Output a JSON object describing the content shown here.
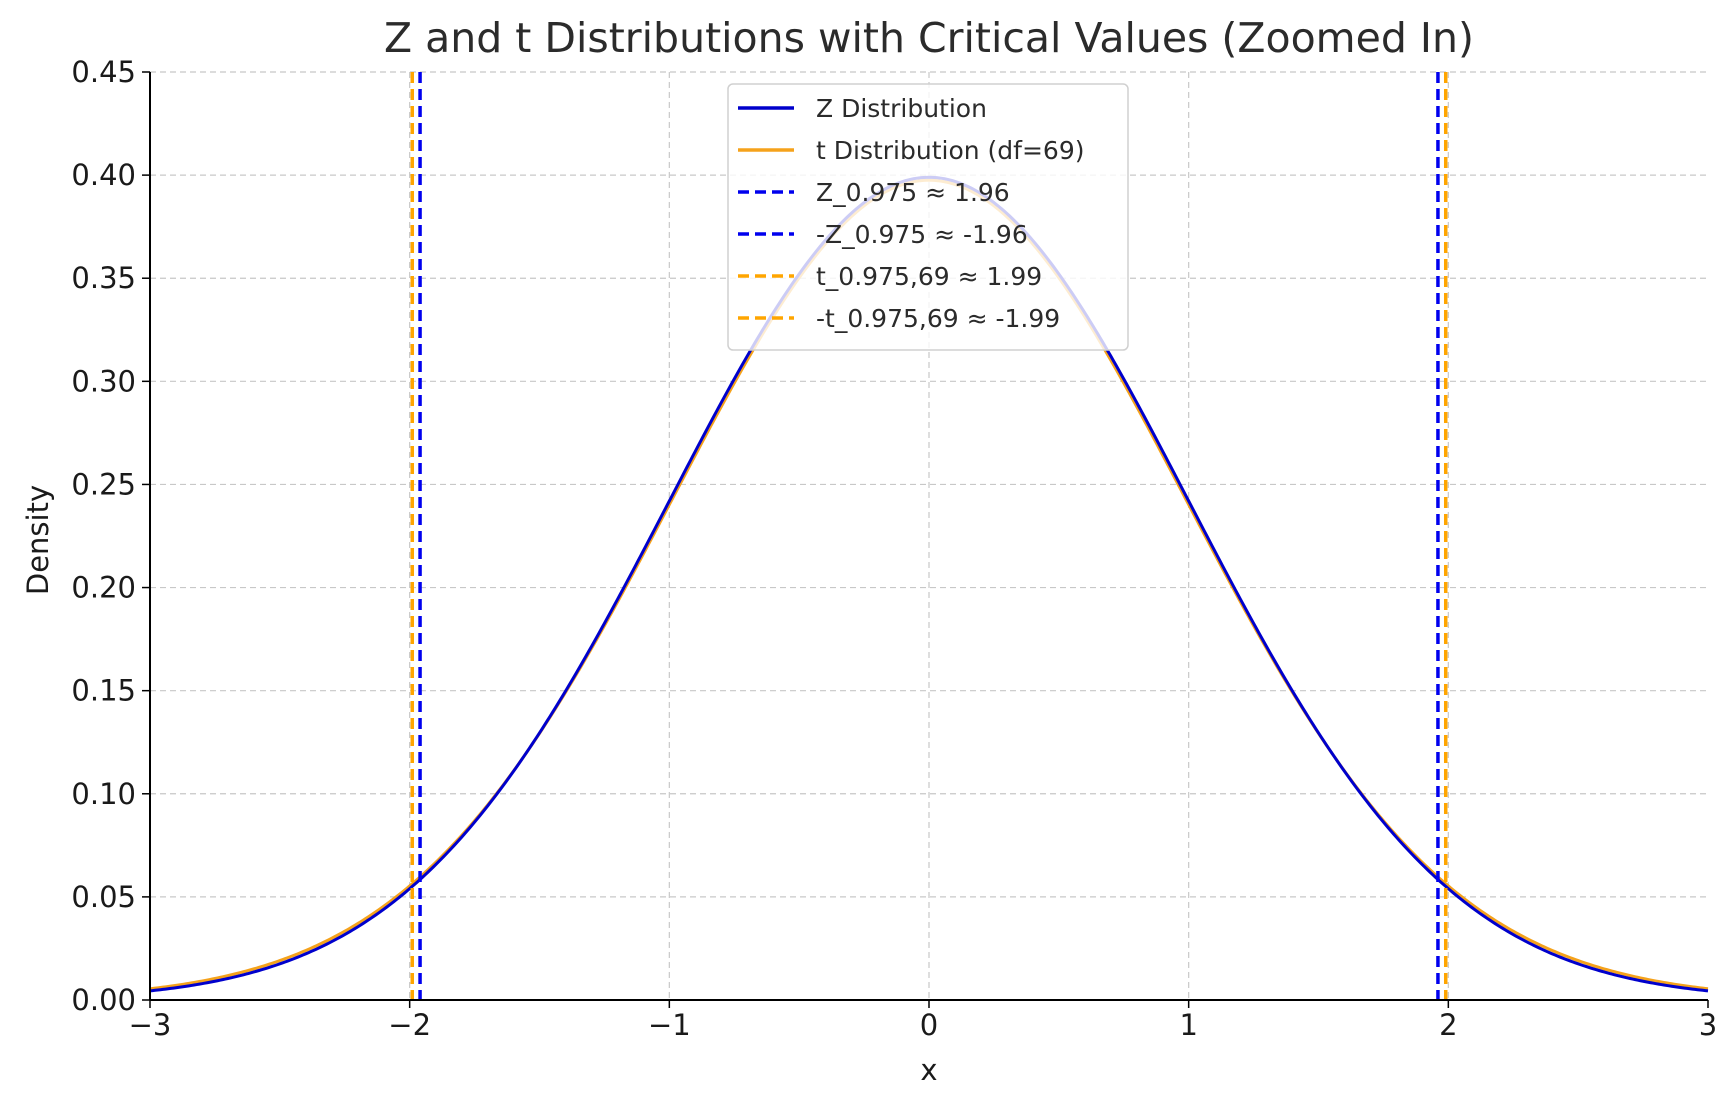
{
  "chart_data": {
    "type": "line",
    "title": "Z and t Distributions with Critical Values (Zoomed In)",
    "xlabel": "x",
    "ylabel": "Density",
    "xlim": [
      -3,
      3
    ],
    "ylim": [
      0,
      0.45
    ],
    "x_ticks": [
      {
        "value": -3,
        "label": "−3"
      },
      {
        "value": -2,
        "label": "−2"
      },
      {
        "value": -1,
        "label": "−1"
      },
      {
        "value": 0,
        "label": "0"
      },
      {
        "value": 1,
        "label": "1"
      },
      {
        "value": 2,
        "label": "2"
      },
      {
        "value": 3,
        "label": "3"
      }
    ],
    "y_ticks": [
      {
        "value": 0.0,
        "label": "0.00"
      },
      {
        "value": 0.05,
        "label": "0.05"
      },
      {
        "value": 0.1,
        "label": "0.10"
      },
      {
        "value": 0.15,
        "label": "0.15"
      },
      {
        "value": 0.2,
        "label": "0.20"
      },
      {
        "value": 0.25,
        "label": "0.25"
      },
      {
        "value": 0.3,
        "label": "0.30"
      },
      {
        "value": 0.35,
        "label": "0.35"
      },
      {
        "value": 0.4,
        "label": "0.40"
      },
      {
        "value": 0.45,
        "label": "0.45"
      }
    ],
    "grid": true,
    "legend_position": "top-center",
    "series": [
      {
        "name": "Z Distribution",
        "color": "#0000cc",
        "style": "solid",
        "x": [
          -3.0,
          -2.75,
          -2.5,
          -2.25,
          -2.0,
          -1.75,
          -1.5,
          -1.25,
          -1.0,
          -0.75,
          -0.5,
          -0.25,
          0.0,
          0.25,
          0.5,
          0.75,
          1.0,
          1.25,
          1.5,
          1.75,
          2.0,
          2.25,
          2.5,
          2.75,
          3.0
        ],
        "y": [
          0.0044,
          0.0091,
          0.0175,
          0.0317,
          0.054,
          0.0863,
          0.1295,
          0.1826,
          0.242,
          0.3011,
          0.3521,
          0.3867,
          0.3989,
          0.3867,
          0.3521,
          0.3011,
          0.242,
          0.1826,
          0.1295,
          0.0863,
          0.054,
          0.0317,
          0.0175,
          0.0091,
          0.0044
        ]
      },
      {
        "name": "t Distribution (df=69)",
        "color": "#f5a21b",
        "style": "solid",
        "x": [
          -3.0,
          -2.75,
          -2.5,
          -2.25,
          -2.0,
          -1.75,
          -1.5,
          -1.25,
          -1.0,
          -0.75,
          -0.5,
          -0.25,
          0.0,
          0.25,
          0.5,
          0.75,
          1.0,
          1.25,
          1.5,
          1.75,
          2.0,
          2.25,
          2.5,
          2.75,
          3.0
        ],
        "y": [
          0.0052,
          0.0104,
          0.0191,
          0.0336,
          0.0556,
          0.0872,
          0.1296,
          0.1818,
          0.2404,
          0.2991,
          0.35,
          0.3847,
          0.397,
          0.3847,
          0.35,
          0.2991,
          0.2404,
          0.1818,
          0.1296,
          0.0872,
          0.0556,
          0.0336,
          0.0191,
          0.0104,
          0.0052
        ]
      }
    ],
    "vlines": [
      {
        "name": "Z_0.975 ≈ 1.96",
        "x": 1.96,
        "color": "#0000ee",
        "style": "dashed"
      },
      {
        "name": "-Z_0.975 ≈ -1.96",
        "x": -1.96,
        "color": "#0000ee",
        "style": "dashed"
      },
      {
        "name": "t_0.975,69 ≈ 1.99",
        "x": 1.99,
        "color": "#ffa500",
        "style": "dashed"
      },
      {
        "name": "-t_0.975,69 ≈ -1.99",
        "x": -1.99,
        "color": "#ffa500",
        "style": "dashed"
      }
    ],
    "legend": [
      {
        "label": "Z Distribution",
        "color": "#0000cc",
        "style": "solid"
      },
      {
        "label": "t Distribution (df=69)",
        "color": "#f5a21b",
        "style": "solid"
      },
      {
        "label": "Z_0.975 ≈ 1.96",
        "color": "#0000ee",
        "style": "dashed"
      },
      {
        "label": "-Z_0.975 ≈ -1.96",
        "color": "#0000ee",
        "style": "dashed"
      },
      {
        "label": "t_0.975,69 ≈ 1.99",
        "color": "#ffa500",
        "style": "dashed"
      },
      {
        "label": "-t_0.975,69 ≈ -1.99",
        "color": "#ffa500",
        "style": "dashed"
      }
    ]
  }
}
